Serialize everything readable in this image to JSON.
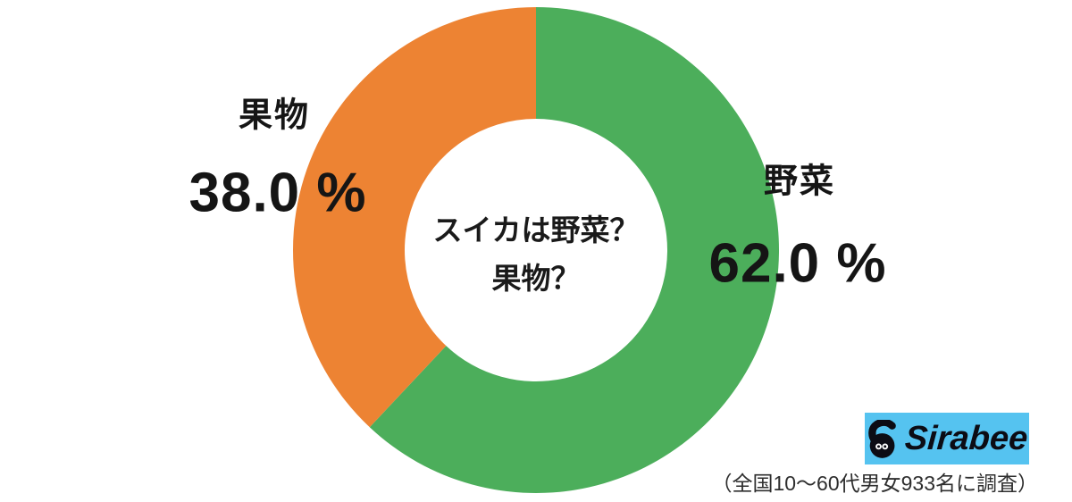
{
  "chart_data": {
    "type": "pie",
    "donut": true,
    "title": "スイカは野菜？果物？",
    "center_title_lines": [
      "スイカは野菜？",
      "果物？"
    ],
    "start_angle_deg": 0,
    "direction": "clockwise",
    "legend_position": "none",
    "slices": [
      {
        "label": "野菜",
        "value": 62.0,
        "value_label": "62.0 %",
        "color": "#4cae5b"
      },
      {
        "label": "果物",
        "value": 38.0,
        "value_label": "38.0 %",
        "color": "#ed8333"
      }
    ]
  },
  "branding": {
    "logo_text": "Sirabee",
    "logo_bg_color": "#55c3f0",
    "logo_text_color": "#0c0c14",
    "mascot_color": "#0c0c14"
  },
  "caption": "（全国10〜60代男女933名に調査）"
}
